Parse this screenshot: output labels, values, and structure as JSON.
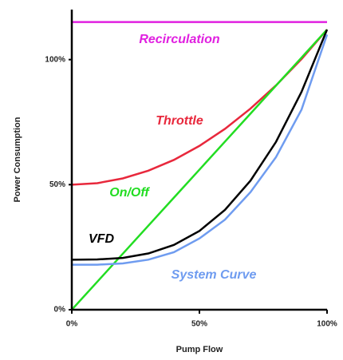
{
  "chart_data": {
    "type": "line",
    "xlabel": "Pump Flow",
    "ylabel": "Power Consumption",
    "x": [
      0,
      10,
      20,
      30,
      40,
      50,
      60,
      70,
      80,
      90,
      100
    ],
    "series": [
      {
        "name": "Recirculation",
        "color": "#e020e0",
        "values": [
          115,
          115,
          115,
          115,
          115,
          115,
          115,
          115,
          115,
          115,
          115
        ]
      },
      {
        "name": "Throttle",
        "color": "#e8283c",
        "values": [
          50,
          50.6,
          52.5,
          55.6,
          59.9,
          65.5,
          72.3,
          80.4,
          89.7,
          100.2,
          112
        ]
      },
      {
        "name": "On/Off",
        "color": "#22dd22",
        "values": [
          0,
          11.2,
          22.4,
          33.6,
          44.8,
          56,
          67.2,
          78.4,
          89.6,
          100.8,
          112
        ]
      },
      {
        "name": "VFD",
        "color": "#000000",
        "values": [
          20,
          20.1,
          20.7,
          22.5,
          25.9,
          31.5,
          39.9,
          51.6,
          67.1,
          87.1,
          112
        ]
      },
      {
        "name": "System Curve",
        "color": "#6f9cf0",
        "values": [
          18,
          18,
          18.5,
          20,
          23,
          28.5,
          36,
          47,
          61,
          80,
          110
        ]
      }
    ],
    "xlim": [
      0,
      100
    ],
    "ylim": [
      0,
      120
    ],
    "xticks": [
      {
        "value": 0,
        "label": "0%"
      },
      {
        "value": 50,
        "label": "50%"
      },
      {
        "value": 100,
        "label": "100%"
      }
    ],
    "yticks": [
      {
        "value": 0,
        "label": "0%"
      },
      {
        "value": 50,
        "label": "50%"
      },
      {
        "value": 100,
        "label": "100%"
      }
    ]
  }
}
